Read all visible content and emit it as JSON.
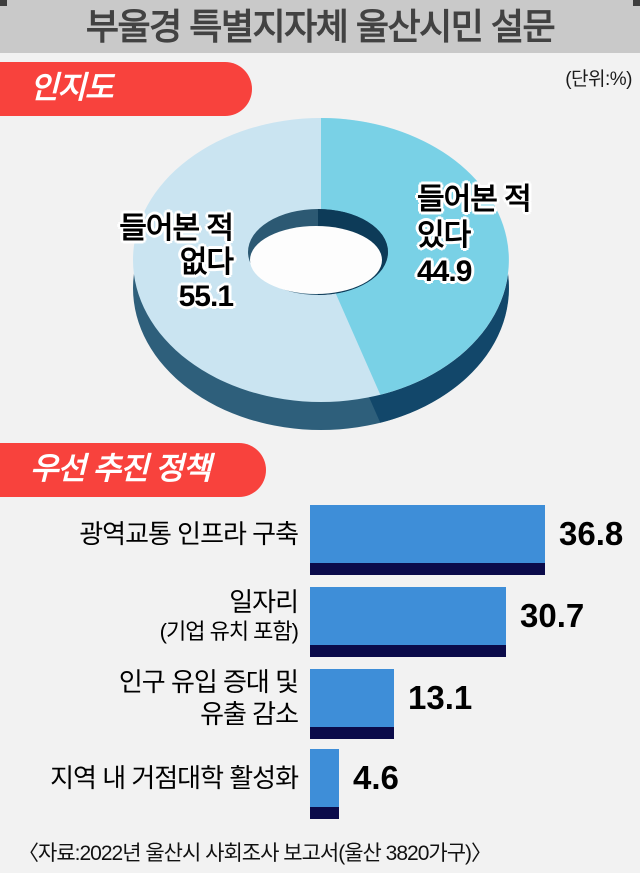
{
  "header": {
    "title": "부울경 특별지자체 울산시민 설문",
    "unit_label": "(단위:%)"
  },
  "sections": {
    "awareness_badge": "인지도",
    "policy_badge": "우선 추진 정책"
  },
  "pie_labels": {
    "yes_lines": [
      "들어본 적",
      "있다",
      "44.9"
    ],
    "no_lines": [
      "들어본 적",
      "없다",
      "55.1"
    ]
  },
  "bars": {
    "items": [
      {
        "label_line1": "광역교통 인프라 구축",
        "label_line2": "",
        "value": "36.8"
      },
      {
        "label_line1": "일자리",
        "label_line2": "(기업 유치 포함)",
        "value": "30.7"
      },
      {
        "label_line1": "인구 유입 증대 및",
        "label_line2": "유출 감소",
        "value": "13.1"
      },
      {
        "label_line1": "지역 내 거점대학 활성화",
        "label_line2": "",
        "value": "4.6"
      }
    ]
  },
  "source": "〈자료:2022년 울산시 사회조사 보고서(울산 3820가구)〉",
  "colors": {
    "background": "#f2f2f2",
    "title_bar": "#c9c9c9",
    "title_text": "#424242",
    "badge_red": "#f8423d",
    "pie_yes_top": "#79d1e6",
    "pie_yes_side": "#12476a",
    "pie_no_top": "#cae4f1",
    "pie_no_side": "#2e5f7b",
    "pie_hole_wall_left": "#2c5973",
    "pie_hole_wall_right": "#0d3b58",
    "pie_hole_floor": "#fdfdfd",
    "bar_blue": "#3e8ed8",
    "bar_shadow_navy": "#0b0b4a"
  },
  "chart_data": [
    {
      "type": "pie",
      "title": "인지도",
      "unit": "%",
      "slices": [
        {
          "label": "들어본 적 있다",
          "value": 44.9,
          "color": "#79d1e6"
        },
        {
          "label": "들어본 적 없다",
          "value": 55.1,
          "color": "#cae4f1"
        }
      ],
      "style": "3d-donut",
      "start_angle_deg": 0,
      "direction": "clockwise"
    },
    {
      "type": "bar",
      "title": "우선 추진 정책",
      "unit": "%",
      "orientation": "horizontal",
      "categories": [
        "광역교통 인프라 구축",
        "일자리 (기업 유치 포함)",
        "인구 유입 증대 및 유출 감소",
        "지역 내 거점대학 활성화"
      ],
      "values": [
        36.8,
        30.7,
        13.1,
        4.6
      ],
      "value_labels": [
        "36.8",
        "30.7",
        "13.1",
        "4.6"
      ],
      "bar_color": "#3e8ed8",
      "xlim": [
        0,
        40
      ],
      "grid": false,
      "legend": false
    }
  ]
}
